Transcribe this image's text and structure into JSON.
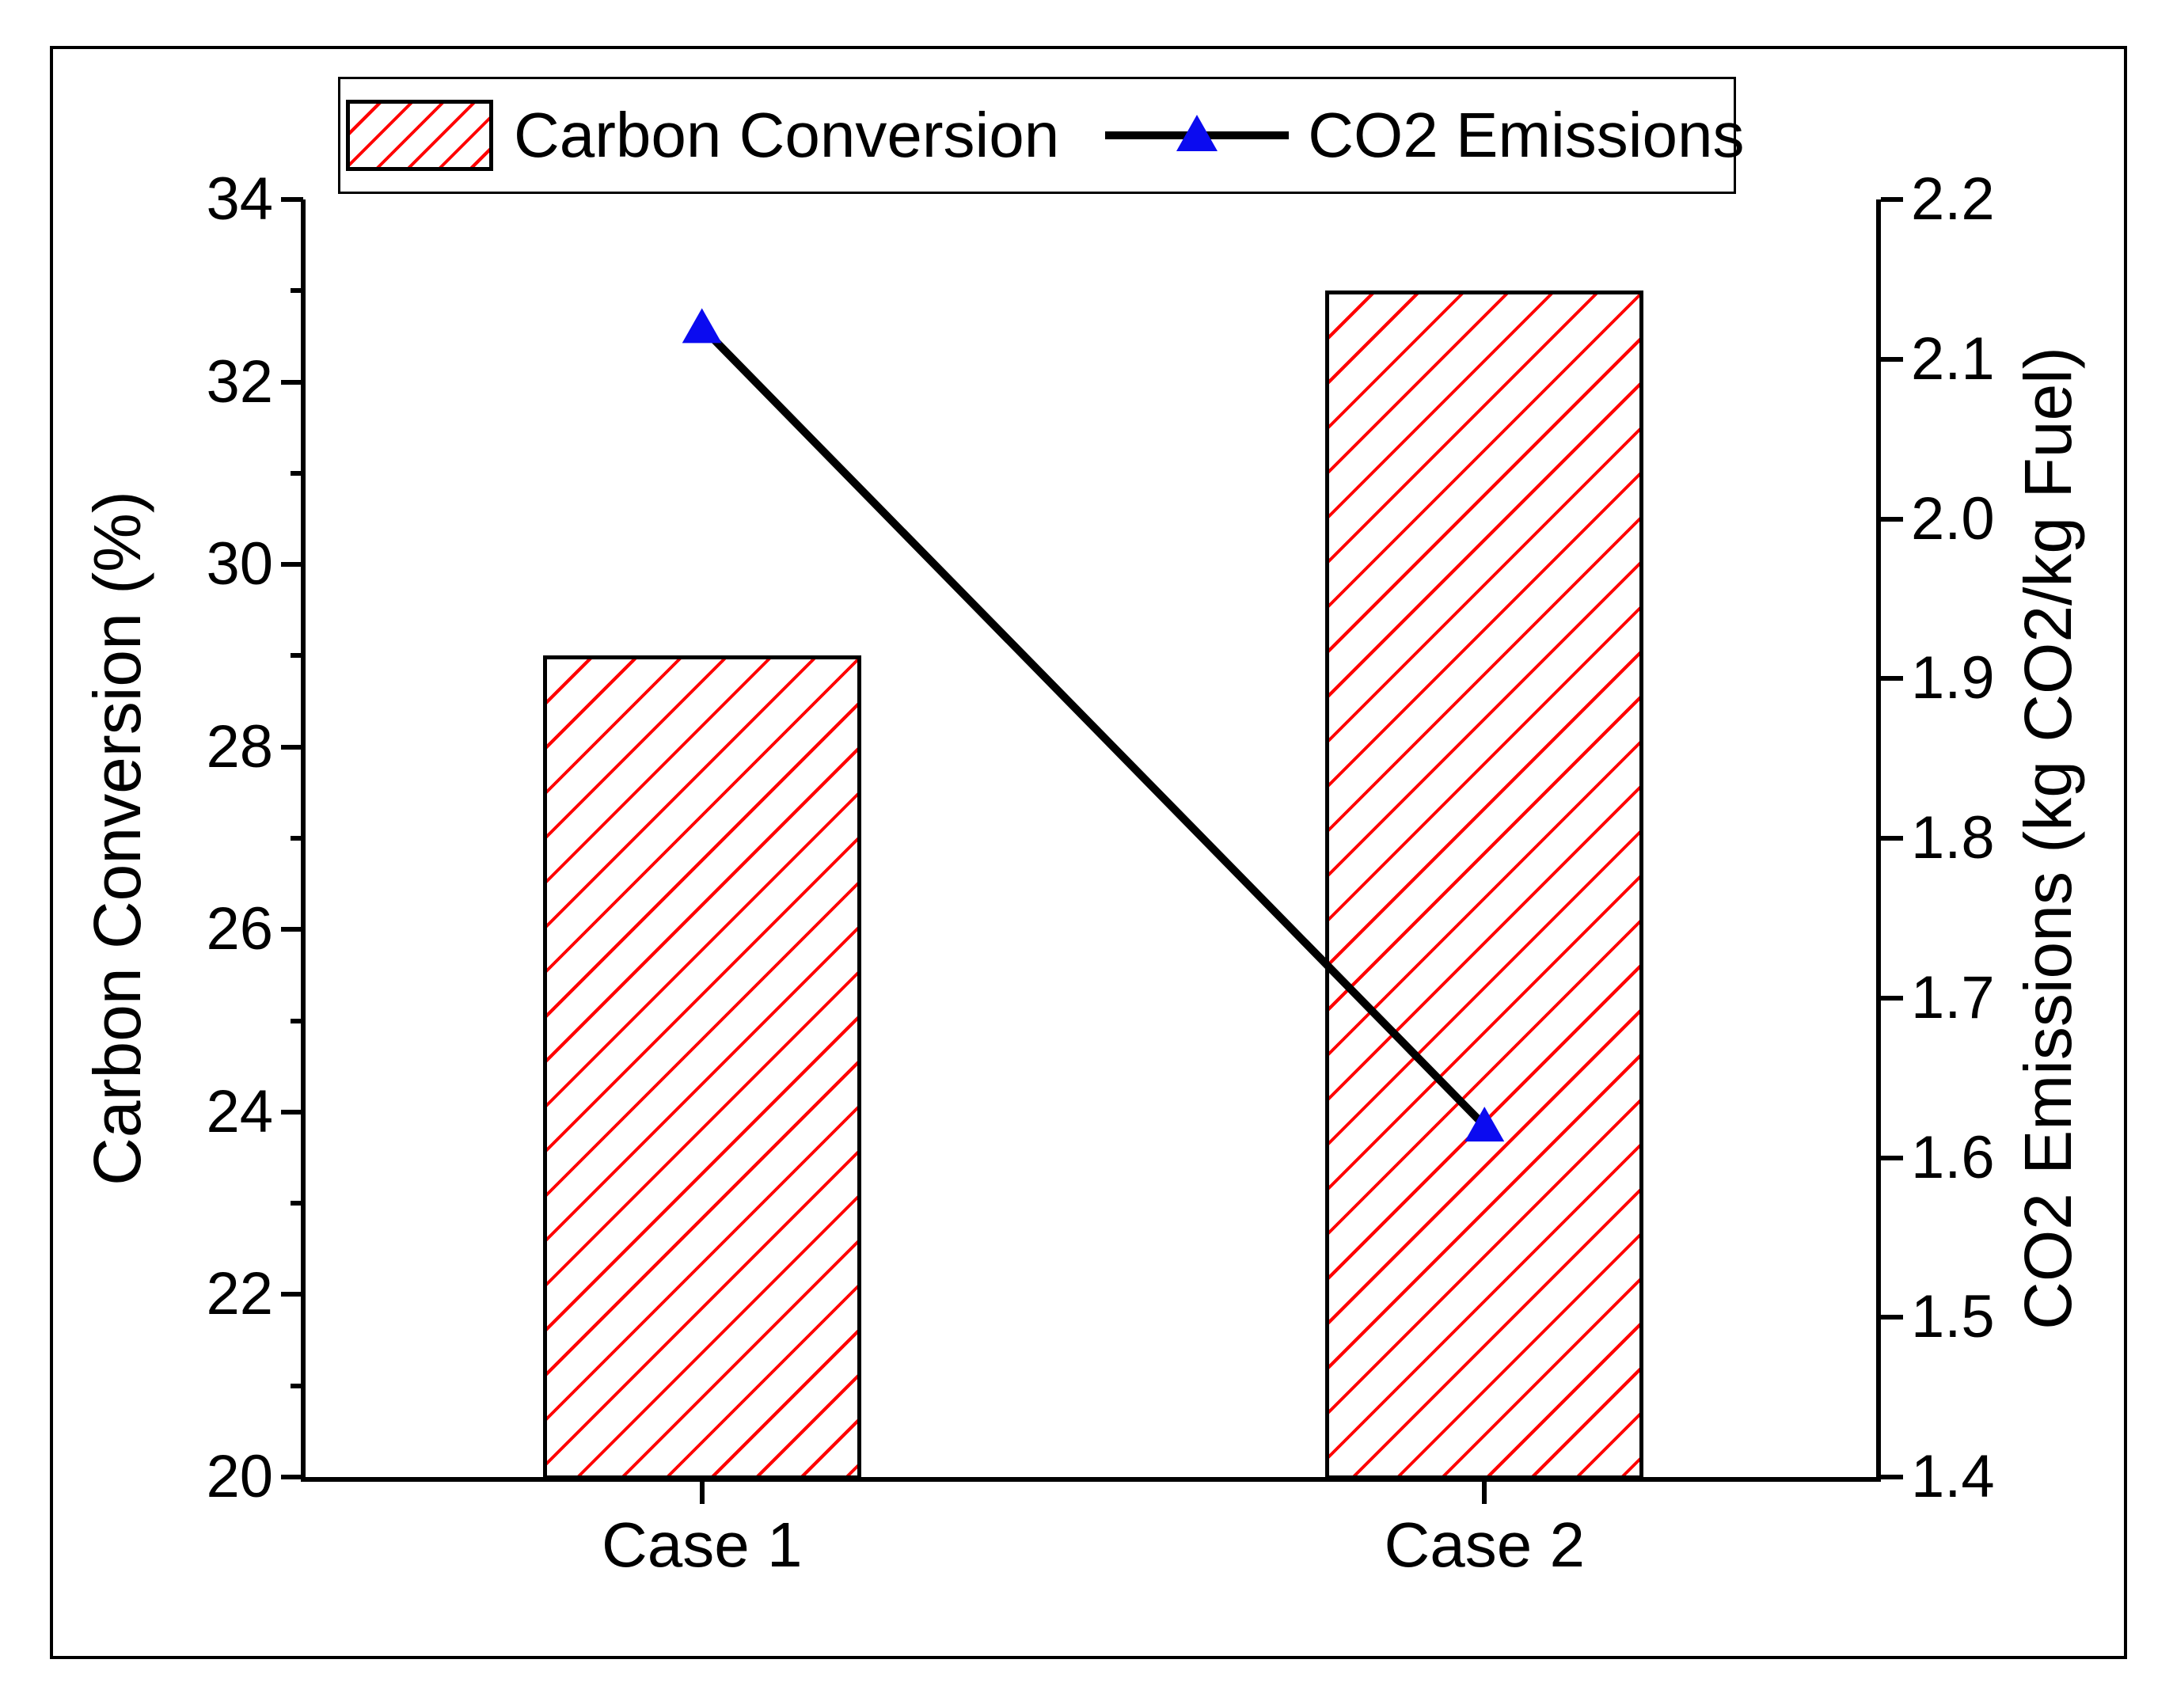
{
  "chart_data": {
    "type": "combo-bar-line",
    "title": "",
    "categories": [
      "Case 1",
      "Case 2"
    ],
    "series": [
      {
        "name": "Carbon Conversion",
        "type": "bar",
        "axis": "left",
        "values": [
          29.0,
          33.0
        ],
        "fill_style": "diagonal-hatch",
        "hatch_color": "#ff0000",
        "border_color": "#000000"
      },
      {
        "name": "CO2 Emissions",
        "type": "line",
        "axis": "right",
        "values": [
          2.12,
          1.62
        ],
        "line_color": "#000000",
        "marker": "triangle-up",
        "marker_color": "#0b0bf0"
      }
    ],
    "left_axis": {
      "label": "Carbon Conversion (%)",
      "min": 20,
      "max": 34,
      "major_ticks": [
        20,
        22,
        24,
        26,
        28,
        30,
        32,
        34
      ],
      "tick_labels": [
        "20",
        "22",
        "24",
        "26",
        "28",
        "30",
        "32",
        "34"
      ],
      "minor_ticks": [
        21,
        23,
        25,
        27,
        29,
        31,
        33
      ]
    },
    "right_axis": {
      "label": "CO2 Emissions (kg CO2/kg Fuel)",
      "min": 1.4,
      "max": 2.2,
      "major_ticks": [
        1.4,
        1.5,
        1.6,
        1.7,
        1.8,
        1.9,
        2.0,
        2.1,
        2.2
      ],
      "tick_labels": [
        "1.4",
        "1.5",
        "1.6",
        "1.7",
        "1.8",
        "1.9",
        "2.0",
        "2.1",
        "2.2"
      ],
      "minor_ticks": []
    },
    "x_axis": {
      "tick_labels": [
        "Case 1",
        "Case 2"
      ]
    },
    "legend": {
      "position": "top",
      "entries": [
        {
          "label": "Carbon Conversion",
          "swatch": "red-hatch-box"
        },
        {
          "label": "CO2 Emissions",
          "swatch": "black-line-blue-triangle"
        }
      ]
    },
    "grid": false
  },
  "colors": {
    "hatch_red": "#ff0000",
    "marker_blue": "#0b0bf0",
    "axis_black": "#000000",
    "background": "#ffffff"
  }
}
